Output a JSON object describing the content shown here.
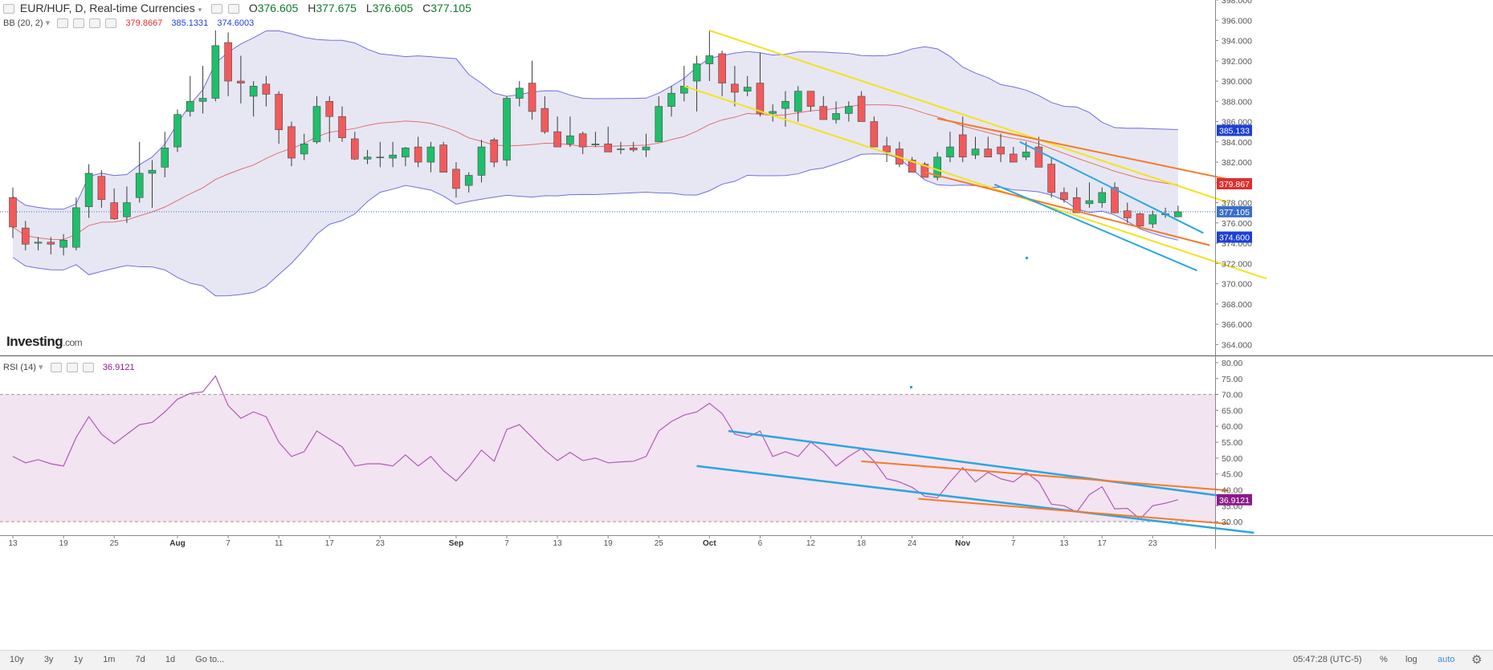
{
  "header": {
    "symbol": "EUR/HUF, D, Real-time Currencies",
    "ohlc": [
      {
        "key": "O",
        "value": "376.605"
      },
      {
        "key": "H",
        "value": "377.675"
      },
      {
        "key": "L",
        "value": "376.605"
      },
      {
        "key": "C",
        "value": "377.105"
      }
    ]
  },
  "bb_legend": {
    "label": "BB (20, 2)",
    "values": [
      {
        "value": "379.8667",
        "color": "#e03030"
      },
      {
        "value": "385.1331",
        "color": "#2040e0"
      },
      {
        "value": "374.6003",
        "color": "#2040e0"
      }
    ]
  },
  "rsi_legend": {
    "label": "RSI (14)",
    "value": "36.9121",
    "color": "#8b1a8b"
  },
  "brand": "Investing",
  "brand_suffix": ".com",
  "bottom": {
    "timeframes": [
      "10y",
      "3y",
      "1y",
      "1m",
      "7d",
      "1d",
      "Go to..."
    ],
    "clock": "05:47:28 (UTC-5)",
    "options": [
      "%",
      "log",
      "auto"
    ],
    "settings_icon": "gear-icon"
  },
  "chart_data": [
    {
      "type": "candlestick",
      "title": "EUR/HUF, D, Real-time Currencies",
      "ylim": [
        363,
        398
      ],
      "y_ticks": [
        364,
        366,
        368,
        370,
        372,
        374,
        376,
        378,
        380,
        382,
        384,
        386,
        388,
        390,
        392,
        394,
        396,
        398
      ],
      "x_tick_labels": [
        "13",
        "19",
        "25",
        "Aug",
        "7",
        "11",
        "17",
        "23",
        "Sep",
        "7",
        "13",
        "19",
        "25",
        "Oct",
        "6",
        "12",
        "18",
        "24",
        "Nov",
        "7",
        "13",
        "17",
        "23"
      ],
      "price_tags": [
        {
          "value": 385.133,
          "label": "385.133",
          "color": "#1d3fd6"
        },
        {
          "value": 379.867,
          "label": "379.867",
          "color": "#e02f2f"
        },
        {
          "value": 377.105,
          "label": "377.105",
          "color": "#3a70c7"
        },
        {
          "value": 374.6,
          "label": "374.600",
          "color": "#1d3fd6"
        }
      ],
      "series": [
        {
          "name": "EUR/HUF",
          "ohlc": [
            [
              378.5,
              379.5,
              374.5,
              375.6
            ],
            [
              375.5,
              376.2,
              373.3,
              373.9
            ],
            [
              374.0,
              374.6,
              373.3,
              374.1
            ],
            [
              374.1,
              374.6,
              372.9,
              373.9
            ],
            [
              373.6,
              374.9,
              372.8,
              374.3
            ],
            [
              373.6,
              378.5,
              373.3,
              377.5
            ],
            [
              377.6,
              381.8,
              376.5,
              380.9
            ],
            [
              380.6,
              381.2,
              377.5,
              378.3
            ],
            [
              378.0,
              379.4,
              376.3,
              376.4
            ],
            [
              376.6,
              379.6,
              376.0,
              378.0
            ],
            [
              378.5,
              384.0,
              378.0,
              380.9
            ],
            [
              380.9,
              382.2,
              377.5,
              381.2
            ],
            [
              381.5,
              385.0,
              380.5,
              383.4
            ],
            [
              383.5,
              387.2,
              383.0,
              386.7
            ],
            [
              387.0,
              390.5,
              386.5,
              388.0
            ],
            [
              388.0,
              391.5,
              386.8,
              388.3
            ],
            [
              388.3,
              395.0,
              388.0,
              393.5
            ],
            [
              393.8,
              394.8,
              388.5,
              390.0
            ],
            [
              390.0,
              392.5,
              387.8,
              389.8
            ],
            [
              388.5,
              390.0,
              386.5,
              389.5
            ],
            [
              389.7,
              390.5,
              387.5,
              388.7
            ],
            [
              388.7,
              389.0,
              383.8,
              385.2
            ],
            [
              385.5,
              386.0,
              381.6,
              382.4
            ],
            [
              382.8,
              384.8,
              382.2,
              383.8
            ],
            [
              384.0,
              388.5,
              383.8,
              387.5
            ],
            [
              388.0,
              388.5,
              384.0,
              386.5
            ],
            [
              386.5,
              387.5,
              384.0,
              384.4
            ],
            [
              384.3,
              385.0,
              382.2,
              382.3
            ],
            [
              382.3,
              383.2,
              381.8,
              382.5
            ],
            [
              382.5,
              384.0,
              381.5,
              382.5
            ],
            [
              382.4,
              384.0,
              381.5,
              382.7
            ],
            [
              382.5,
              383.5,
              381.6,
              383.4
            ],
            [
              383.5,
              384.5,
              381.5,
              382.0
            ],
            [
              382.0,
              384.0,
              381.0,
              383.5
            ],
            [
              383.7,
              384.0,
              381.0,
              381.0
            ],
            [
              381.3,
              382.0,
              378.5,
              379.4
            ],
            [
              379.7,
              381.0,
              379.0,
              380.7
            ],
            [
              380.7,
              384.2,
              380.0,
              383.5
            ],
            [
              384.2,
              384.4,
              381.5,
              382.0
            ],
            [
              382.2,
              388.5,
              381.6,
              388.3
            ],
            [
              388.3,
              390.0,
              387.5,
              389.3
            ],
            [
              389.8,
              392.0,
              386.2,
              387.0
            ],
            [
              387.3,
              388.5,
              384.8,
              385.0
            ],
            [
              385.0,
              386.5,
              383.5,
              383.5
            ],
            [
              383.8,
              386.5,
              383.5,
              384.6
            ],
            [
              384.8,
              385.0,
              382.8,
              383.5
            ],
            [
              383.7,
              385.0,
              383.5,
              383.8
            ],
            [
              383.8,
              385.5,
              383.0,
              383.0
            ],
            [
              383.3,
              384.0,
              382.8,
              383.3
            ],
            [
              383.4,
              384.0,
              383.0,
              383.2
            ],
            [
              383.2,
              384.8,
              382.5,
              383.5
            ],
            [
              384.0,
              388.5,
              384.0,
              387.5
            ],
            [
              387.5,
              389.5,
              386.5,
              388.8
            ],
            [
              388.8,
              391.5,
              388.0,
              389.5
            ],
            [
              390.0,
              392.5,
              387.0,
              391.7
            ],
            [
              391.7,
              395.0,
              390.0,
              392.5
            ],
            [
              392.7,
              393.0,
              388.5,
              389.8
            ],
            [
              389.7,
              391.5,
              387.5,
              388.9
            ],
            [
              389.0,
              390.5,
              388.5,
              389.4
            ],
            [
              389.8,
              392.8,
              386.5,
              386.8
            ],
            [
              386.8,
              387.7,
              386.0,
              387.0
            ],
            [
              387.3,
              389.0,
              385.5,
              388.0
            ],
            [
              387.0,
              389.5,
              386.0,
              389.0
            ],
            [
              389.0,
              389.0,
              387.0,
              387.5
            ],
            [
              387.5,
              388.5,
              386.5,
              386.2
            ],
            [
              386.2,
              388.0,
              385.8,
              386.8
            ],
            [
              386.8,
              388.0,
              386.0,
              387.5
            ],
            [
              388.5,
              389.0,
              386.0,
              386.0
            ],
            [
              386.0,
              386.5,
              383.5,
              383.5
            ],
            [
              383.6,
              384.5,
              382.0,
              383.0
            ],
            [
              383.3,
              384.0,
              381.5,
              381.8
            ],
            [
              382.2,
              382.5,
              381.0,
              381.0
            ],
            [
              381.8,
              382.0,
              380.5,
              380.5
            ],
            [
              380.5,
              383.0,
              380.2,
              382.5
            ],
            [
              382.5,
              385.0,
              382.0,
              383.5
            ],
            [
              384.7,
              386.5,
              382.0,
              382.5
            ],
            [
              382.7,
              384.5,
              382.3,
              383.3
            ],
            [
              383.3,
              384.5,
              382.5,
              382.5
            ],
            [
              383.5,
              384.8,
              382.0,
              382.8
            ],
            [
              382.8,
              383.5,
              382.0,
              382.0
            ],
            [
              382.5,
              384.0,
              382.2,
              383.0
            ],
            [
              383.5,
              384.5,
              381.5,
              381.5
            ],
            [
              381.8,
              382.5,
              378.5,
              379.0
            ],
            [
              379.0,
              379.5,
              378.0,
              378.3
            ],
            [
              378.5,
              379.5,
              377.0,
              377.0
            ],
            [
              377.9,
              380.0,
              377.5,
              378.2
            ],
            [
              378.0,
              379.5,
              377.5,
              379.0
            ],
            [
              379.5,
              380.0,
              377.0,
              377.0
            ],
            [
              377.2,
              378.0,
              376.0,
              376.5
            ],
            [
              376.9,
              377.0,
              375.5,
              375.7
            ],
            [
              375.9,
              377.2,
              375.5,
              376.8
            ],
            [
              376.8,
              377.5,
              376.5,
              376.9
            ],
            [
              376.6,
              377.7,
              376.6,
              377.1
            ]
          ]
        }
      ],
      "indicators": [
        {
          "name": "BB (20, 2)",
          "values": {
            "middle": 379.8667,
            "upper": 385.1331,
            "lower": 374.6003
          }
        }
      ]
    },
    {
      "type": "line",
      "title": "RSI (14)",
      "ylim": [
        26,
        82
      ],
      "y_ticks": [
        30,
        35,
        40,
        45,
        50,
        55,
        60,
        65,
        70,
        75,
        80
      ],
      "levels": [
        70,
        30
      ],
      "series": [
        {
          "name": "RSI (14)",
          "values": [
            50.5,
            48.5,
            49.5,
            48.2,
            47.5,
            56.5,
            63,
            57.5,
            54.5,
            57.5,
            60.5,
            61.2,
            64.5,
            68.5,
            70.3,
            70.8,
            75.8,
            66.5,
            62.5,
            64.5,
            63,
            55,
            50.5,
            52,
            58.5,
            56,
            53.5,
            47.5,
            48.2,
            48.2,
            47.5,
            51,
            47.5,
            50.5,
            46,
            42.8,
            47.2,
            52.5,
            49,
            59,
            60.5,
            56.5,
            52.5,
            49.2,
            51.8,
            49.2,
            50,
            48.5,
            48.8,
            49,
            50.5,
            58.5,
            61.5,
            63.5,
            64.5,
            67.2,
            64,
            57.5,
            56.5,
            58.5,
            50.5,
            52,
            50.5,
            55,
            52,
            47.5,
            50.5,
            53,
            49,
            43.5,
            42.5,
            40.8,
            38,
            37.5,
            42.5,
            47,
            42.5,
            45.5,
            43.5,
            42.5,
            45.5,
            42.5,
            35.5,
            35,
            33,
            38.5,
            41,
            34,
            34.2,
            30.8,
            35,
            35.8,
            36.9
          ]
        }
      ]
    }
  ]
}
